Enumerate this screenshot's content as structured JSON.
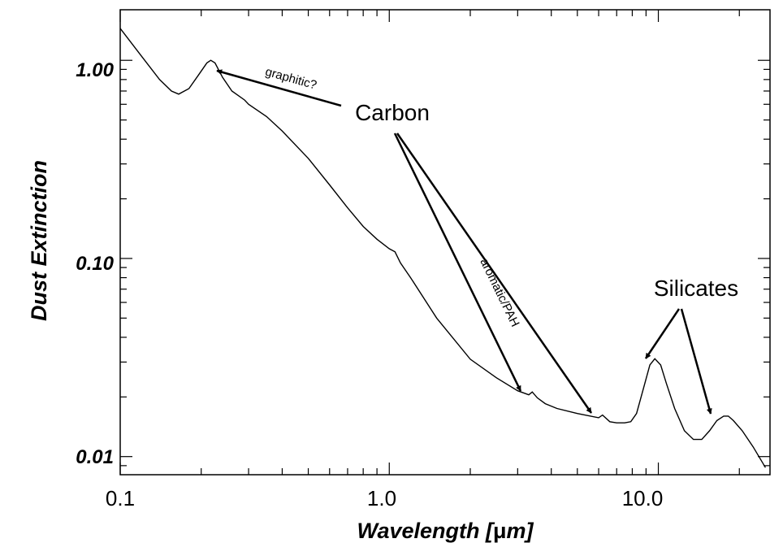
{
  "chart_data": {
    "type": "line",
    "xscale": "log",
    "yscale": "log",
    "xlim": [
      0.1,
      26.0
    ],
    "ylim": [
      0.0081,
      1.8
    ],
    "xlabel_prefix": "Wavelength [",
    "xlabel_mu": "μ",
    "xlabel_suffix": "m]",
    "ylabel": "Dust Extinction",
    "x_tick_labels": [
      {
        "value": 0.1,
        "label": "0.1"
      },
      {
        "value": 1.0,
        "label": "1.0"
      },
      {
        "value": 10.0,
        "label": "10.0"
      }
    ],
    "y_tick_labels": [
      {
        "value": 1.0,
        "label": "1.00"
      },
      {
        "value": 0.1,
        "label": "0.10"
      },
      {
        "value": 0.01,
        "label": "0.01"
      }
    ],
    "series": [
      {
        "name": "dust extinction",
        "x": [
          0.1,
          0.12,
          0.14,
          0.155,
          0.165,
          0.18,
          0.195,
          0.21,
          0.217,
          0.225,
          0.24,
          0.26,
          0.29,
          0.3,
          0.35,
          0.4,
          0.5,
          0.6,
          0.7,
          0.8,
          0.9,
          1.0,
          1.05,
          1.1,
          1.2,
          1.5,
          2.0,
          2.5,
          3.0,
          3.3,
          3.4,
          3.55,
          3.8,
          4.2,
          5.0,
          6.0,
          6.2,
          6.6,
          7.0,
          7.5,
          7.9,
          8.3,
          8.8,
          9.3,
          9.7,
          10.2,
          10.7,
          11.5,
          12.5,
          13.5,
          14.5,
          15.5,
          16.5,
          17.5,
          18.2,
          19.0,
          20.5,
          22.5,
          25.0
        ],
        "y": [
          1.45,
          1.05,
          0.8,
          0.7,
          0.675,
          0.72,
          0.84,
          0.97,
          1.0,
          0.97,
          0.82,
          0.7,
          0.63,
          0.6,
          0.52,
          0.44,
          0.32,
          0.235,
          0.18,
          0.145,
          0.125,
          0.112,
          0.108,
          0.095,
          0.08,
          0.05,
          0.031,
          0.025,
          0.0215,
          0.0205,
          0.0212,
          0.0198,
          0.0185,
          0.0175,
          0.0165,
          0.0157,
          0.0162,
          0.015,
          0.0148,
          0.0148,
          0.015,
          0.0165,
          0.022,
          0.029,
          0.0312,
          0.029,
          0.0235,
          0.0175,
          0.0135,
          0.0122,
          0.0122,
          0.0135,
          0.0152,
          0.016,
          0.016,
          0.0152,
          0.0135,
          0.0112,
          0.0088
        ]
      }
    ],
    "annotations": {
      "graphitic": "graphitic?",
      "carbon": "Carbon",
      "aromatic": "aromatic/PAH",
      "silicates": "Silicates"
    },
    "grid": false,
    "legend": "none"
  }
}
